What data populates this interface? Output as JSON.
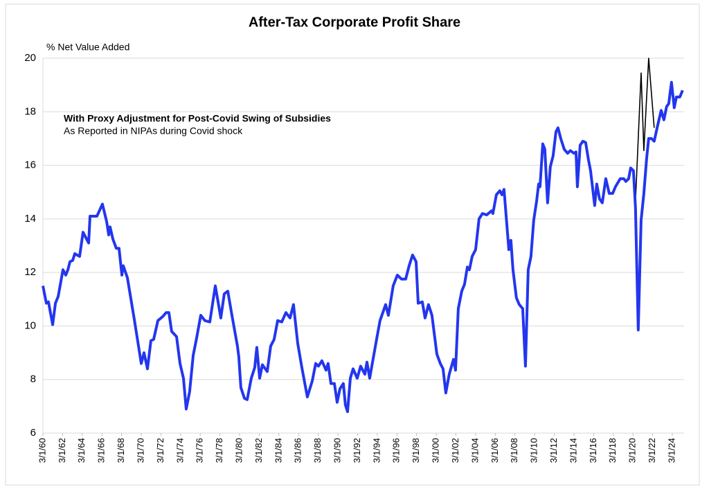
{
  "chart_data": {
    "type": "line",
    "title": "After-Tax Corporate Profit Share",
    "y_label": "% Net Value Added",
    "xlim": [
      1960,
      2025.2
    ],
    "ylim": [
      6,
      20
    ],
    "yticks": [
      6,
      8,
      10,
      12,
      14,
      16,
      18,
      20
    ],
    "grid": true,
    "xticks": [
      {
        "value": 1960,
        "label": "3/1/60"
      },
      {
        "value": 1962,
        "label": "3/1/62"
      },
      {
        "value": 1964,
        "label": "3/1/64"
      },
      {
        "value": 1966,
        "label": "3/1/66"
      },
      {
        "value": 1968,
        "label": "3/1/68"
      },
      {
        "value": 1970,
        "label": "3/1/70"
      },
      {
        "value": 1972,
        "label": "3/1/72"
      },
      {
        "value": 1974,
        "label": "3/1/74"
      },
      {
        "value": 1976,
        "label": "3/1/76"
      },
      {
        "value": 1978,
        "label": "3/1/78"
      },
      {
        "value": 1980,
        "label": "3/1/80"
      },
      {
        "value": 1982,
        "label": "3/1/82"
      },
      {
        "value": 1984,
        "label": "3/1/84"
      },
      {
        "value": 1986,
        "label": "3/1/86"
      },
      {
        "value": 1988,
        "label": "3/1/88"
      },
      {
        "value": 1990,
        "label": "3/1/90"
      },
      {
        "value": 1992,
        "label": "3/1/92"
      },
      {
        "value": 1994,
        "label": "3/1/94"
      },
      {
        "value": 1996,
        "label": "3/1/96"
      },
      {
        "value": 1998,
        "label": "3/1/98"
      },
      {
        "value": 2000,
        "label": "3/1/00"
      },
      {
        "value": 2002,
        "label": "3/1/02"
      },
      {
        "value": 2004,
        "label": "3/1/04"
      },
      {
        "value": 2006,
        "label": "3/1/06"
      },
      {
        "value": 2008,
        "label": "3/1/08"
      },
      {
        "value": 2010,
        "label": "3/1/10"
      },
      {
        "value": 2012,
        "label": "3/1/12"
      },
      {
        "value": 2014,
        "label": "3/1/14"
      },
      {
        "value": 2016,
        "label": "3/1/16"
      },
      {
        "value": 2018,
        "label": "3/1/18"
      },
      {
        "value": 2020,
        "label": "3/1/20"
      },
      {
        "value": 2022,
        "label": "3/1/22"
      },
      {
        "value": 2024,
        "label": "3/1/24"
      }
    ],
    "series": [
      {
        "name": "With Proxy Adjustment for Post-Covid Swing of Subsidies",
        "color": "#2336ee",
        "x": [
          1960.0,
          1960.35,
          1960.56,
          1960.99,
          1961.27,
          1961.55,
          1962.04,
          1962.32,
          1962.54,
          1962.75,
          1963.03,
          1963.24,
          1963.73,
          1964.08,
          1964.65,
          1964.79,
          1965.49,
          1966.05,
          1966.48,
          1966.69,
          1966.83,
          1967.11,
          1967.46,
          1967.74,
          1968.03,
          1968.17,
          1968.59,
          1969.29,
          1970.0,
          1970.28,
          1970.63,
          1970.98,
          1971.26,
          1971.69,
          1972.18,
          1972.53,
          1972.81,
          1973.09,
          1973.59,
          1973.94,
          1974.29,
          1974.57,
          1974.92,
          1975.28,
          1975.63,
          1976.05,
          1976.47,
          1976.97,
          1977.53,
          1978.09,
          1978.44,
          1978.8,
          1979.22,
          1979.78,
          1979.92,
          1980.13,
          1980.49,
          1980.77,
          1981.19,
          1981.54,
          1981.75,
          1982.04,
          1982.32,
          1982.81,
          1983.16,
          1983.51,
          1983.87,
          1984.29,
          1984.71,
          1985.13,
          1985.48,
          1985.91,
          1986.33,
          1986.89,
          1987.39,
          1987.74,
          1988.02,
          1988.37,
          1988.79,
          1989.0,
          1989.29,
          1989.64,
          1989.92,
          1990.2,
          1990.55,
          1990.76,
          1990.98,
          1991.26,
          1991.54,
          1991.96,
          1992.31,
          1992.74,
          1992.95,
          1993.23,
          1993.93,
          1994.28,
          1994.85,
          1995.13,
          1995.62,
          1996.04,
          1996.47,
          1996.89,
          1997.24,
          1997.59,
          1997.95,
          1998.16,
          1998.58,
          1998.86,
          1999.21,
          1999.56,
          2000.06,
          2000.41,
          2000.69,
          2000.97,
          2001.32,
          2001.75,
          2001.96,
          2002.24,
          2002.59,
          2002.87,
          2003.16,
          2003.37,
          2003.65,
          2004.0,
          2004.35,
          2004.7,
          2005.13,
          2005.62,
          2005.76,
          2006.11,
          2006.46,
          2006.68,
          2006.89,
          2007.38,
          2007.59,
          2007.8,
          2008.15,
          2008.44,
          2008.79,
          2009.07,
          2009.35,
          2009.63,
          2009.91,
          2010.2,
          2010.41,
          2010.55,
          2010.83,
          2011.04,
          2011.32,
          2011.6,
          2011.88,
          2012.17,
          2012.38,
          2012.66,
          2013.01,
          2013.36,
          2013.64,
          2014.0,
          2014.21,
          2014.35,
          2014.63,
          2014.91,
          2015.19,
          2015.48,
          2015.69,
          2016.11,
          2016.32,
          2016.6,
          2016.88,
          2017.24,
          2017.59,
          2017.94,
          2018.22,
          2018.71,
          2019.07,
          2019.28,
          2019.56,
          2019.77,
          2020.05,
          2020.26,
          2020.54,
          2020.83,
          2021.11,
          2021.39,
          2021.6,
          2021.88,
          2022.16,
          2022.52,
          2022.87,
          2023.15,
          2023.43,
          2023.64,
          2023.92,
          2024.2,
          2024.42,
          2024.77,
          2025.05
        ],
        "values": [
          11.5,
          10.85,
          10.9,
          10.05,
          10.85,
          11.1,
          12.1,
          11.9,
          12.1,
          12.4,
          12.45,
          12.7,
          12.6,
          13.5,
          13.1,
          14.1,
          14.1,
          14.55,
          13.9,
          13.4,
          13.7,
          13.25,
          12.9,
          12.9,
          11.9,
          12.25,
          11.8,
          10.25,
          8.6,
          9.0,
          8.4,
          9.45,
          9.5,
          10.2,
          10.35,
          10.5,
          10.5,
          9.8,
          9.6,
          8.6,
          8.05,
          6.9,
          7.55,
          8.9,
          9.55,
          10.4,
          10.2,
          10.15,
          11.5,
          10.3,
          11.2,
          11.3,
          10.4,
          9.25,
          8.85,
          7.7,
          7.3,
          7.25,
          8.05,
          8.45,
          9.2,
          8.05,
          8.55,
          8.3,
          9.25,
          9.5,
          10.2,
          10.15,
          10.5,
          10.3,
          10.8,
          9.35,
          8.45,
          7.35,
          7.95,
          8.6,
          8.5,
          8.7,
          8.35,
          8.6,
          7.85,
          7.85,
          7.15,
          7.65,
          7.85,
          7.05,
          6.8,
          8.05,
          8.4,
          8.05,
          8.5,
          8.2,
          8.65,
          8.05,
          9.5,
          10.2,
          10.8,
          10.4,
          11.5,
          11.9,
          11.75,
          11.75,
          12.25,
          12.65,
          12.4,
          10.85,
          10.9,
          10.3,
          10.8,
          10.4,
          8.95,
          8.6,
          8.4,
          7.5,
          8.2,
          8.75,
          8.35,
          10.65,
          11.3,
          11.55,
          12.2,
          12.1,
          12.6,
          12.85,
          14.0,
          14.2,
          14.15,
          14.3,
          14.2,
          14.9,
          15.05,
          14.9,
          15.1,
          12.85,
          13.2,
          12.1,
          11.05,
          10.8,
          10.65,
          8.5,
          12.1,
          12.6,
          13.95,
          14.65,
          15.3,
          15.2,
          16.8,
          16.6,
          14.6,
          15.95,
          16.35,
          17.25,
          17.4,
          17.0,
          16.6,
          16.45,
          16.55,
          16.45,
          16.5,
          15.2,
          16.75,
          16.9,
          16.85,
          16.2,
          15.8,
          14.5,
          15.3,
          14.75,
          14.6,
          15.5,
          14.95,
          14.95,
          15.2,
          15.5,
          15.5,
          15.4,
          15.5,
          15.9,
          15.8,
          14.4,
          9.85,
          13.95,
          14.95,
          16.25,
          17.0,
          17.0,
          16.9,
          17.5,
          18.05,
          17.7,
          18.2,
          18.3,
          19.1,
          18.15,
          18.55,
          18.55,
          18.8
        ]
      },
      {
        "name": "As Reported in NIPAs during Covid shock",
        "color": "#000000",
        "x": [
          2020.26,
          2020.83,
          2021.11,
          2021.6,
          2022.16
        ],
        "values": [
          14.65,
          19.45,
          16.55,
          20.0,
          17.4
        ]
      }
    ]
  }
}
